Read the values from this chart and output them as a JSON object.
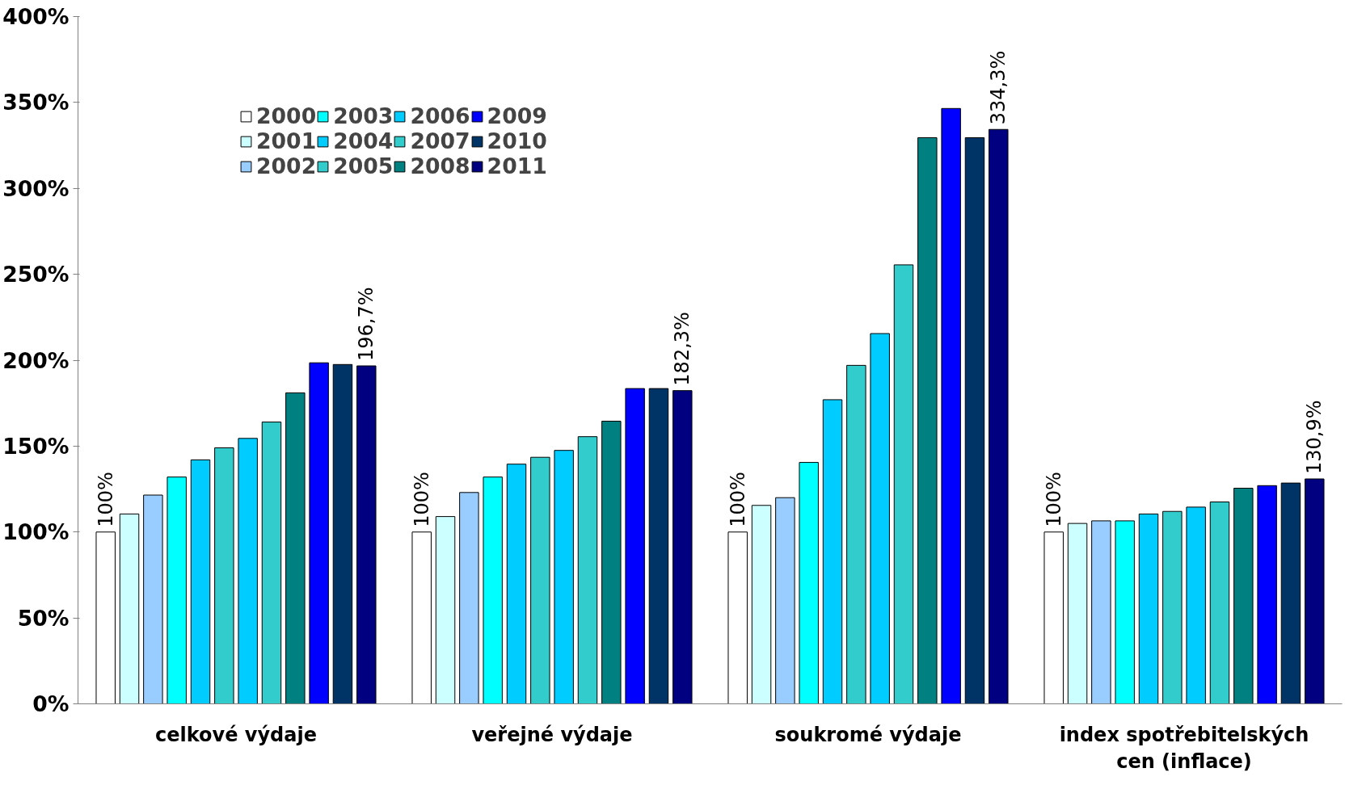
{
  "chart_data": {
    "type": "bar",
    "categories": [
      "celkové výdaje",
      "veřejné výdaje",
      "soukromé výdaje",
      "index spotřebitelských cen (inflace)"
    ],
    "ylim": [
      0,
      400
    ],
    "yticks": [
      {
        "value": 0,
        "label": "0%"
      },
      {
        "value": 50,
        "label": "50%"
      },
      {
        "value": 100,
        "label": "100%"
      },
      {
        "value": 150,
        "label": "150%"
      },
      {
        "value": 200,
        "label": "200%"
      },
      {
        "value": 250,
        "label": "250%"
      },
      {
        "value": 300,
        "label": "300%"
      },
      {
        "value": 350,
        "label": "350%"
      },
      {
        "value": 400,
        "label": "400%"
      }
    ],
    "grid": false,
    "legend": "top left",
    "series": [
      {
        "name": "2000",
        "color": "#ffffff",
        "values": [
          100,
          100,
          100,
          100
        ],
        "value_labels": [
          "100%",
          "100%",
          "100%",
          "100%"
        ]
      },
      {
        "name": "2001",
        "color": "#ccffff",
        "values": [
          110.5,
          109,
          115.5,
          105
        ]
      },
      {
        "name": "2002",
        "color": "#99ccff",
        "values": [
          121.5,
          123,
          120,
          106.5
        ]
      },
      {
        "name": "2003",
        "color": "#00ffff",
        "values": [
          132,
          132,
          140.5,
          106.5
        ]
      },
      {
        "name": "2004",
        "color": "#00ccff",
        "values": [
          142,
          139.5,
          177,
          110.5
        ]
      },
      {
        "name": "2005",
        "color": "#33cccc",
        "values": [
          149,
          143.5,
          197,
          112
        ]
      },
      {
        "name": "2006",
        "color": "#00ccff",
        "values": [
          154.5,
          147.5,
          215.5,
          114.5
        ]
      },
      {
        "name": "2007",
        "color": "#33cccc",
        "values": [
          164,
          155.5,
          255.5,
          117.5
        ]
      },
      {
        "name": "2008",
        "color": "#008080",
        "values": [
          181,
          164.5,
          329.5,
          125.5
        ]
      },
      {
        "name": "2009",
        "color": "#0000ff",
        "values": [
          198.5,
          183.5,
          346.5,
          127
        ]
      },
      {
        "name": "2010",
        "color": "#003366",
        "values": [
          197.5,
          183.5,
          329.5,
          128.5
        ]
      },
      {
        "name": "2011",
        "color": "#000080",
        "values": [
          196.7,
          182.3,
          334.3,
          130.9
        ],
        "value_labels": [
          "196,7%",
          "182,3%",
          "334,3%",
          "130,9%"
        ]
      }
    ]
  }
}
